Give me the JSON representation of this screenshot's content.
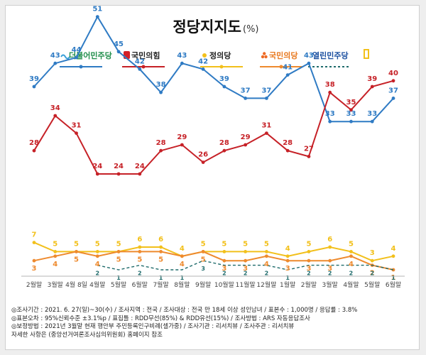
{
  "chart_data": {
    "type": "line",
    "title": "정당지지도",
    "unit": "(%)",
    "categories": [
      "2월말",
      "3월말",
      "4월 8일",
      "4월말",
      "5월말",
      "6월말",
      "7월말",
      "8월말",
      "9월말",
      "10월말",
      "11월말",
      "12월말",
      "1월말",
      "2월말",
      "3월말",
      "4월말",
      "5월말",
      "6월말"
    ],
    "series": [
      {
        "name": "더불어민주당",
        "color": "#2f7bc4",
        "values": [
          39,
          43,
          44,
          51,
          45,
          42,
          38,
          43,
          42,
          39,
          37,
          37,
          41,
          43,
          33,
          33,
          33,
          37
        ]
      },
      {
        "name": "국민의힘",
        "color": "#c62127",
        "values": [
          28,
          34,
          31,
          24,
          24,
          24,
          28,
          29,
          26,
          28,
          29,
          31,
          28,
          27,
          38,
          35,
          39,
          40
        ]
      },
      {
        "name": "정의당",
        "color": "#f2c01b",
        "values": [
          7,
          5,
          5,
          5,
          5,
          6,
          6,
          4,
          5,
          5,
          5,
          5,
          4,
          5,
          6,
          5,
          3,
          4
        ]
      },
      {
        "name": "국민의당",
        "color": "#ee8a2e",
        "values": [
          3,
          4,
          5,
          4,
          5,
          5,
          5,
          4,
          5,
          3,
          3,
          4,
          3,
          3,
          3,
          4,
          2,
          1
        ]
      },
      {
        "name": "열린민주당",
        "color": "#1f6b6b",
        "dashed": true,
        "values": [
          null,
          null,
          null,
          2,
          1,
          2,
          1,
          1,
          3,
          2,
          2,
          2,
          1,
          2,
          2,
          2,
          2,
          1
        ]
      }
    ]
  },
  "footer": {
    "line1": "◎조사기간 : 2021. 6. 27(일)~30(수) / 조사지역 : 전국 / 조사대상 : 전국 만 18세 이상 성인남녀 / 표본수 : 1,000명 / 응답률 : 3.8%",
    "line2": "◎표본오차 : 95%신뢰수준 ±3.1%p / 표집틀 : RDD무선(85%) & RDD유선(15%) / 조사방법 : ARS 자동응답조사",
    "line3": "◎보정방법 : 2021년 3월말 현재 행안부 주민등록인구비례(셀가중) / 조사기관 : 리서치뷰 / 조사주관 : 리서치뷰",
    "line4": "자세한 사항은 (중앙선거여론조사심의위원회) 홈페이지 참조"
  },
  "legend_icons": {
    "minju": "blue-wave-logo",
    "ppp": "red-square-logo",
    "justice": "yellow-speech-logo",
    "peoples": "orange-tri-dot-logo",
    "open": "yellow-flag-logo"
  }
}
